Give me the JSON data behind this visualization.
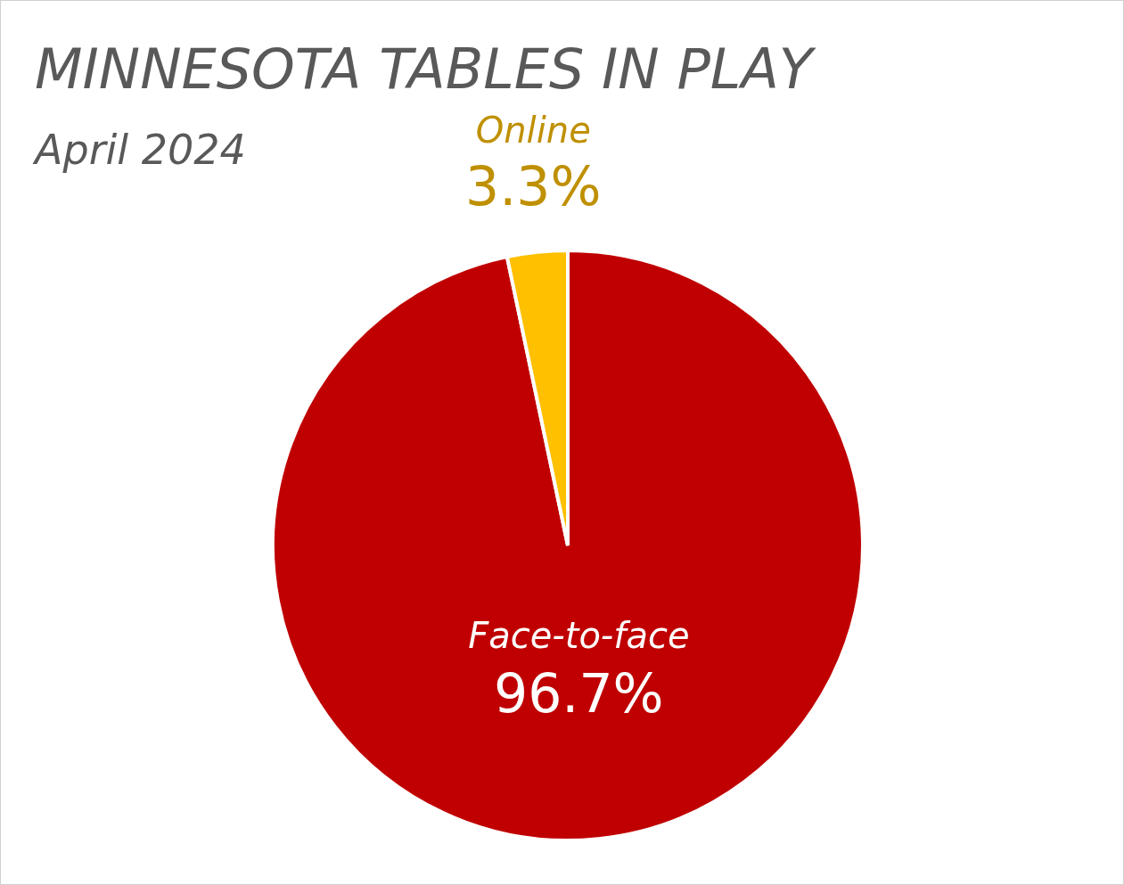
{
  "chart_data": {
    "type": "pie",
    "title": "MINNESOTA TABLES IN PLAY",
    "subtitle": "April 2024",
    "categories": [
      "Face-to-face",
      "Online"
    ],
    "values": [
      96.7,
      3.3
    ],
    "colors": [
      "#c00000",
      "#ffc000"
    ],
    "value_labels": [
      "96.7%",
      "3.3%"
    ],
    "legend": false
  }
}
